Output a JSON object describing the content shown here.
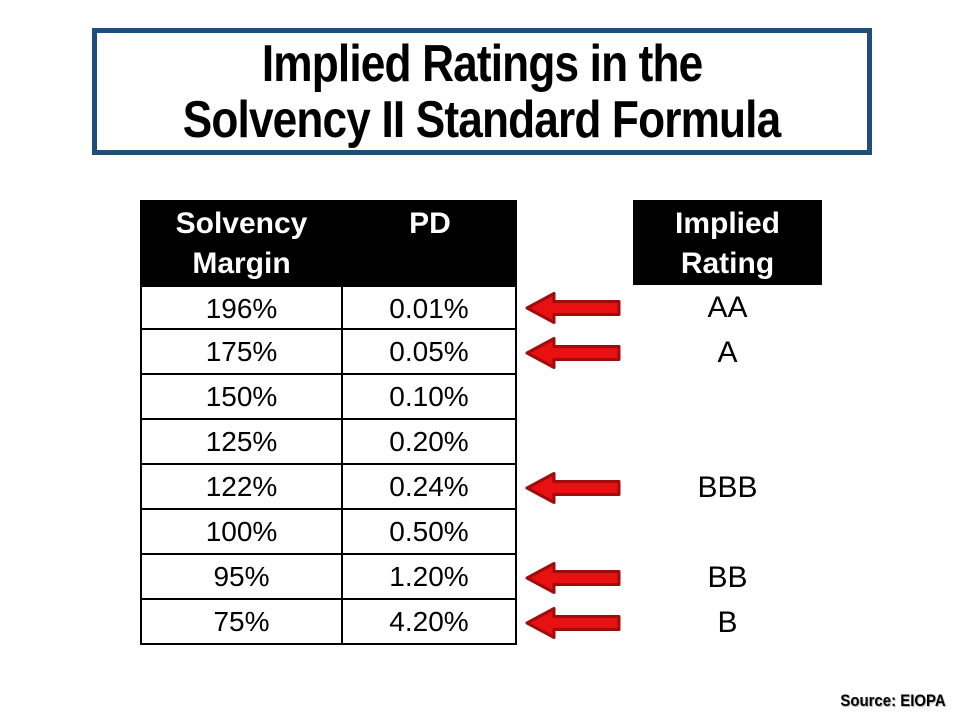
{
  "slide": {
    "title_line1": "Implied Ratings in the",
    "title_line2": "Solvency II Standard Formula",
    "source": "Source: EIOPA"
  },
  "table": {
    "headers": {
      "solvency_line1": "Solvency",
      "solvency_line2": "Margin",
      "pd": "PD",
      "implied_line1": "Implied",
      "implied_line2": "Rating"
    },
    "rows": [
      {
        "margin": "196%",
        "pd": "0.01%",
        "arrow": true,
        "rating": "AA"
      },
      {
        "margin": "175%",
        "pd": "0.05%",
        "arrow": true,
        "rating": "A"
      },
      {
        "margin": "150%",
        "pd": "0.10%",
        "arrow": false,
        "rating": ""
      },
      {
        "margin": "125%",
        "pd": "0.20%",
        "arrow": false,
        "rating": ""
      },
      {
        "margin": "122%",
        "pd": "0.24%",
        "arrow": true,
        "rating": "BBB"
      },
      {
        "margin": "100%",
        "pd": "0.50%",
        "arrow": false,
        "rating": ""
      },
      {
        "margin": "95%",
        "pd": "1.20%",
        "arrow": true,
        "rating": "BB"
      },
      {
        "margin": "75%",
        "pd": "4.20%",
        "arrow": true,
        "rating": "B"
      }
    ]
  },
  "icons": {
    "row_pointer": "left-arrow"
  },
  "colors": {
    "accent_border": "#1F4E79",
    "header_bg": "#000000",
    "arrow_fill": "#E81010",
    "arrow_stroke": "#A00C0C"
  }
}
